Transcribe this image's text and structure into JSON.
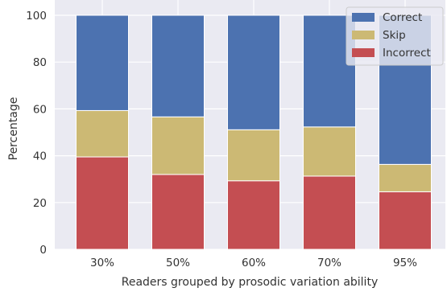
{
  "chart_data": {
    "type": "bar",
    "stacked": true,
    "categories": [
      "30%",
      "50%",
      "60%",
      "70%",
      "95%"
    ],
    "series": [
      {
        "name": "Incorrect",
        "color": "#c44e52",
        "values": [
          39.5,
          32,
          29.3,
          31.3,
          24.6
        ]
      },
      {
        "name": "Skip",
        "color": "#ccb974",
        "values": [
          19.8,
          24.6,
          21.8,
          21,
          11.7
        ]
      },
      {
        "name": "Correct",
        "color": "#4c72b0",
        "values": [
          40.7,
          43.4,
          48.9,
          47.7,
          63.7
        ]
      }
    ],
    "xlabel": "Readers grouped by prosodic variation ability",
    "ylabel": "Percentage",
    "ylim": [
      0,
      100
    ],
    "yticks": [
      0,
      20,
      40,
      60,
      80,
      100
    ],
    "grid": true,
    "background": "#eaeaf2",
    "legend": {
      "position": "top-right",
      "order": [
        "Correct",
        "Skip",
        "Incorrect"
      ]
    }
  }
}
